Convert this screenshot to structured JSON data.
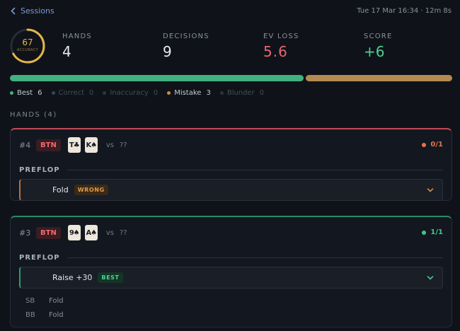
{
  "header": {
    "back_label": "Sessions",
    "meta": "Tue 17 Mar 16:34 · 12m 8s"
  },
  "accuracy": {
    "value": "67",
    "label": "ACCURACY",
    "fraction": 0.67,
    "color": "#e3b64b"
  },
  "stats": {
    "hands": {
      "label": "HANDS",
      "value": "4"
    },
    "decisions": {
      "label": "DECISIONS",
      "value": "9"
    },
    "ev_loss": {
      "label": "EV LOSS",
      "value": "5.6"
    },
    "score": {
      "label": "SCORE",
      "value": "+6"
    }
  },
  "distribution": [
    {
      "name": "Best",
      "count": 6,
      "color": "#43b07f"
    },
    {
      "name": "Mistake",
      "count": 3,
      "color": "#b58a52"
    }
  ],
  "legend": [
    {
      "label": "Best",
      "count": "6",
      "color": "#43b07f",
      "dim": false
    },
    {
      "label": "Correct",
      "count": "0",
      "color": "#2b4a63",
      "dim": true
    },
    {
      "label": "Inaccuracy",
      "count": "0",
      "color": "#2b3646",
      "dim": true
    },
    {
      "label": "Mistake",
      "count": "3",
      "color": "#c98a45",
      "dim": false
    },
    {
      "label": "Blunder",
      "count": "0",
      "color": "#2b3242",
      "dim": true
    }
  ],
  "hands_section": {
    "title": "HANDS (4)"
  },
  "hands": [
    {
      "number": "#4",
      "position": "BTN",
      "cards": [
        "T♣",
        "K♠"
      ],
      "vs": "vs",
      "villain": "??",
      "result": "0/1",
      "result_color": "#e8734a",
      "street": "PREFLOP",
      "decision": {
        "action": "Fold",
        "tag": "WRONG"
      }
    },
    {
      "number": "#3",
      "position": "BTN",
      "cards": [
        "9♠",
        "A♠"
      ],
      "vs": "vs",
      "villain": "??",
      "result": "1/1",
      "result_color": "#3fc88a",
      "street": "PREFLOP",
      "decision": {
        "action": "Raise +30",
        "tag": "BEST"
      },
      "other_actions": [
        {
          "position": "SB",
          "action": "Fold"
        },
        {
          "position": "BB",
          "action": "Fold"
        }
      ]
    }
  ]
}
